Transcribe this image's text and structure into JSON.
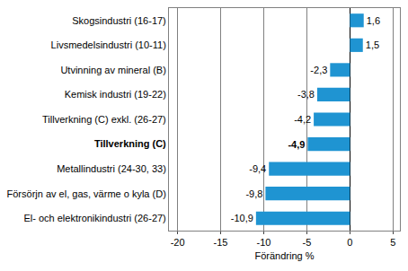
{
  "chart_data": {
    "type": "bar",
    "orientation": "horizontal",
    "categories": [
      "Skogsindustri (16-17)",
      "Livsmedelsindustri (10-11)",
      "Utvinning av mineral (B)",
      "Kemisk industri (19-22)",
      "Tillverkning (C) exkl. (26-27)",
      "Tillverkning (C)",
      "Metallindustri (24-30, 33)",
      "Försörjn av el, gas, värme o kyla (D)",
      "El- och elektronikindustri (26-27)"
    ],
    "values": [
      1.6,
      1.5,
      -2.3,
      -3.8,
      -4.2,
      -4.9,
      -9.4,
      -9.8,
      -10.9
    ],
    "value_labels": [
      "1,6",
      "1,5",
      "-2,3",
      "-3,8",
      "-4,2",
      "-4,9",
      "-9,4",
      "-9,8",
      "-10,9"
    ],
    "data_labels": true,
    "color": "#1f94d2",
    "xlabel": "Förändring %",
    "xlim": [
      -21,
      5.8
    ],
    "xticks": [
      -20,
      -15,
      -10,
      -5,
      0,
      5
    ],
    "grid": true
  }
}
